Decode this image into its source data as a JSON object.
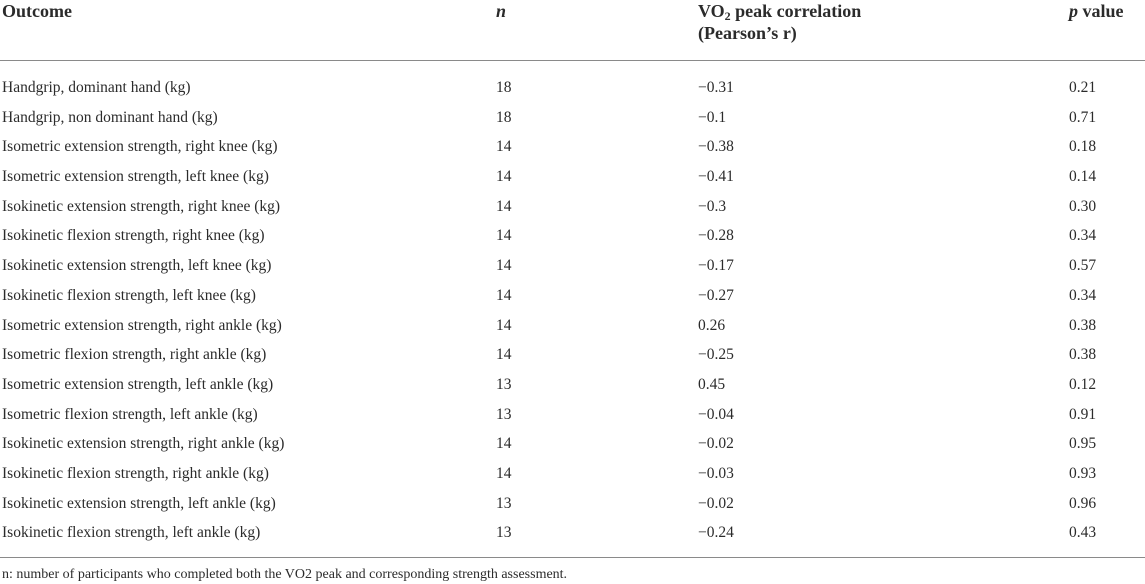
{
  "header": {
    "outcome": "Outcome",
    "n": "n",
    "vo2_prefix": "VO",
    "vo2_sub": "2",
    "vo2_suffix": " peak correlation",
    "vo2_line2": "(Pearson’s r)",
    "p_italic": "p",
    "p_rest": " value"
  },
  "rows": [
    {
      "outcome": "Handgrip, dominant hand (kg)",
      "n": "18",
      "r": "−0.31",
      "p": "0.21"
    },
    {
      "outcome": "Handgrip, non dominant hand (kg)",
      "n": "18",
      "r": "−0.1",
      "p": "0.71"
    },
    {
      "outcome": "Isometric extension strength, right knee (kg)",
      "n": "14",
      "r": "−0.38",
      "p": "0.18"
    },
    {
      "outcome": "Isometric extension strength, left knee (kg)",
      "n": "14",
      "r": "−0.41",
      "p": "0.14"
    },
    {
      "outcome": "Isokinetic extension strength, right knee (kg)",
      "n": "14",
      "r": "−0.3",
      "p": "0.30"
    },
    {
      "outcome": "Isokinetic flexion strength, right knee (kg)",
      "n": "14",
      "r": "−0.28",
      "p": "0.34"
    },
    {
      "outcome": "Isokinetic extension strength, left knee (kg)",
      "n": "14",
      "r": "−0.17",
      "p": "0.57"
    },
    {
      "outcome": "Isokinetic flexion strength, left knee (kg)",
      "n": "14",
      "r": "−0.27",
      "p": "0.34"
    },
    {
      "outcome": "Isometric extension strength, right ankle (kg)",
      "n": "14",
      "r": "0.26",
      "p": "0.38"
    },
    {
      "outcome": "Isometric flexion strength, right ankle (kg)",
      "n": "14",
      "r": "−0.25",
      "p": "0.38"
    },
    {
      "outcome": "Isometric extension strength, left ankle (kg)",
      "n": "13",
      "r": "0.45",
      "p": "0.12"
    },
    {
      "outcome": "Isometric flexion strength, left ankle (kg)",
      "n": "13",
      "r": "−0.04",
      "p": "0.91"
    },
    {
      "outcome": "Isokinetic extension strength, right ankle (kg)",
      "n": "14",
      "r": "−0.02",
      "p": "0.95"
    },
    {
      "outcome": "Isokinetic flexion strength, right ankle (kg)",
      "n": "14",
      "r": "−0.03",
      "p": "0.93"
    },
    {
      "outcome": "Isokinetic extension strength, left ankle (kg)",
      "n": "13",
      "r": "−0.02",
      "p": "0.96"
    },
    {
      "outcome": "Isokinetic flexion strength, left ankle (kg)",
      "n": "13",
      "r": "−0.24",
      "p": "0.43"
    }
  ],
  "footnote": "n: number of participants who completed both the VO2 peak and corresponding strength assessment."
}
